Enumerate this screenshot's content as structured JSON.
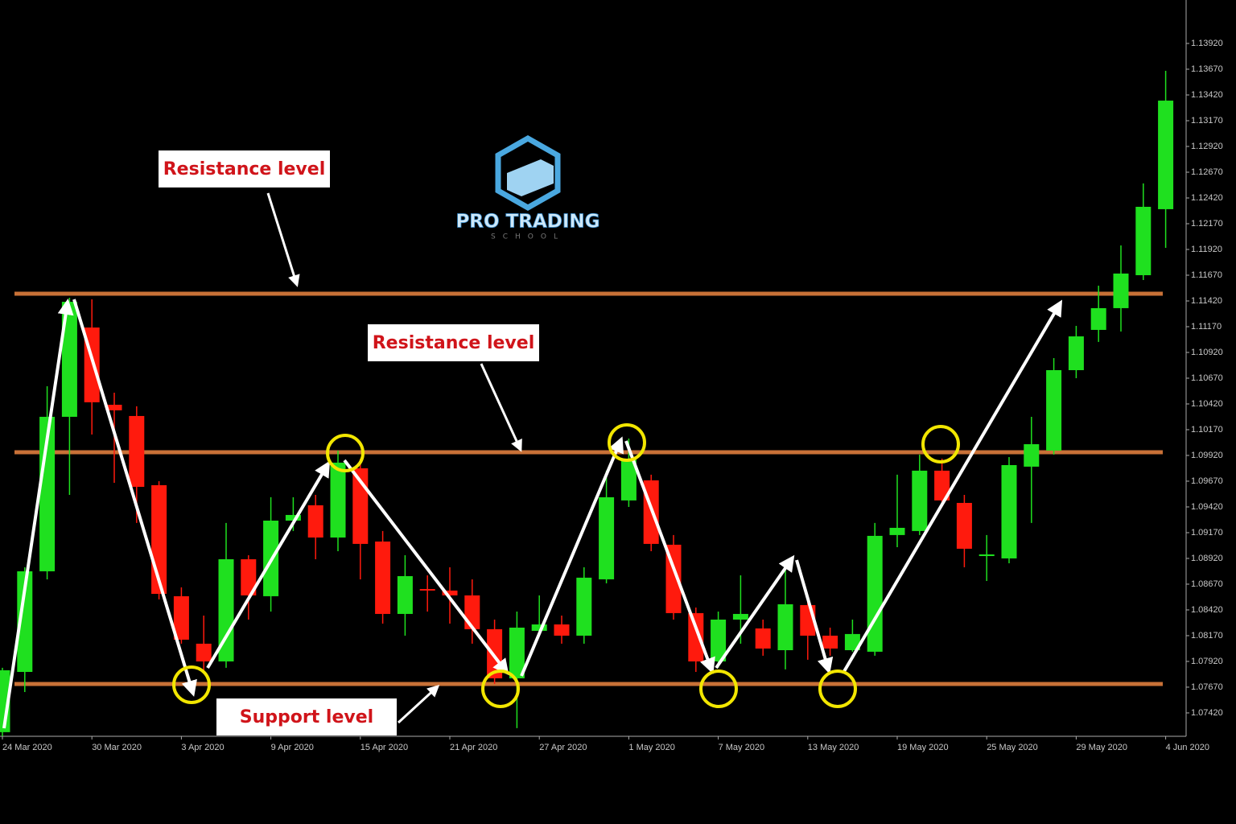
{
  "chart_data": {
    "type": "candlestick",
    "categories": [
      "24 Mar 2020",
      null,
      null,
      null,
      "30 Mar 2020",
      null,
      null,
      null,
      "3 Apr 2020",
      null,
      null,
      null,
      "9 Apr 2020",
      null,
      null,
      null,
      "15 Apr 2020",
      null,
      null,
      null,
      "21 Apr 2020",
      null,
      null,
      null,
      "27 Apr 2020",
      null,
      null,
      null,
      "1 May 2020",
      null,
      null,
      null,
      "7 May 2020",
      null,
      null,
      null,
      "13 May 2020",
      null,
      null,
      null,
      "19 May 2020",
      null,
      null,
      null,
      "25 May 2020",
      null,
      null,
      null,
      "29 May 2020",
      null,
      null,
      null,
      "4 Jun 2020"
    ],
    "open": [
      1.07233,
      1.07818,
      1.08795,
      1.10295,
      1.11162,
      1.10412,
      1.10303,
      1.09631,
      1.08553,
      1.08092,
      1.0792,
      1.08912,
      1.08553,
      1.09287,
      1.09436,
      1.09123,
      1.09795,
      1.09084,
      1.08381,
      1.08623,
      1.08608,
      1.08561,
      1.08233,
      1.07756,
      1.08217,
      1.08279,
      1.0817,
      1.08717,
      1.09483,
      1.09678,
      1.09053,
      1.08389,
      1.0792,
      1.08326,
      1.0824,
      1.08029,
      1.08467,
      1.0817,
      1.08029,
      1.08014,
      1.09147,
      1.09186,
      1.09772,
      1.09459,
      1.08943,
      1.0892,
      1.09811,
      1.09967,
      1.10748,
      1.11139,
      1.1135,
      1.1167,
      1.12311
    ],
    "high": [
      1.07858,
      1.08834,
      1.10592,
      1.11451,
      1.11436,
      1.10529,
      1.10397,
      1.0967,
      1.08639,
      1.08365,
      1.09264,
      1.08951,
      1.09514,
      1.09514,
      1.09537,
      1.09967,
      1.09889,
      1.09186,
      1.08951,
      1.08756,
      1.08834,
      1.08717,
      1.08326,
      1.08404,
      1.08561,
      1.08365,
      1.08834,
      1.09772,
      1.10084,
      1.09733,
      1.09147,
      1.08443,
      1.08404,
      1.08756,
      1.08326,
      1.08873,
      1.08561,
      1.08248,
      1.08326,
      1.09264,
      1.09733,
      1.09928,
      1.09889,
      1.09537,
      1.09147,
      1.09904,
      1.10295,
      1.10865,
      1.11178,
      1.11568,
      1.11959,
      1.12561,
      1.13654
    ],
    "low": [
      1.07193,
      1.07623,
      1.08717,
      1.09537,
      1.10123,
      1.09654,
      1.09264,
      1.08522,
      1.08092,
      1.07818,
      1.07858,
      1.08326,
      1.08404,
      1.09186,
      1.08912,
      1.0899,
      1.08717,
      1.08287,
      1.0817,
      1.08404,
      1.08287,
      1.08092,
      1.07701,
      1.07272,
      1.0817,
      1.08092,
      1.08092,
      1.08678,
      1.0942,
      1.0899,
      1.08326,
      1.07818,
      1.07858,
      1.08092,
      1.07975,
      1.07842,
      1.07936,
      1.07975,
      1.08014,
      1.07975,
      1.09029,
      1.09147,
      1.0942,
      1.08834,
      1.08701,
      1.08873,
      1.09264,
      1.09928,
      1.1067,
      1.11022,
      1.11123,
      1.11623,
      1.11936
    ],
    "close": [
      1.07834,
      1.08795,
      1.10295,
      1.11412,
      1.10436,
      1.10358,
      1.09615,
      1.08576,
      1.08131,
      1.0792,
      1.08912,
      1.08561,
      1.09287,
      1.09342,
      1.09123,
      1.0985,
      1.09061,
      1.08381,
      1.08748,
      1.08608,
      1.08561,
      1.08233,
      1.07756,
      1.08248,
      1.08279,
      1.0817,
      1.08733,
      1.09514,
      1.09889,
      1.09061,
      1.08389,
      1.0792,
      1.08326,
      1.08381,
      1.08045,
      1.08475,
      1.0817,
      1.08045,
      1.08186,
      1.09139,
      1.09217,
      1.09772,
      1.09483,
      1.09014,
      1.08959,
      1.09826,
      1.10029,
      1.10748,
      1.11076,
      1.1135,
      1.11686,
      1.12334,
      1.13365
    ],
    "up_color": "#1fe01f",
    "down_color": "#ff1a0d",
    "ylim": [
      1.07193,
      1.14342
    ],
    "yticks": [
      {
        "value": 1.0742,
        "label": "1.07420"
      },
      {
        "value": 1.0767,
        "label": "1.07670"
      },
      {
        "value": 1.0792,
        "label": "1.07920"
      },
      {
        "value": 1.0817,
        "label": "1.08170"
      },
      {
        "value": 1.0842,
        "label": "1.08420"
      },
      {
        "value": 1.0867,
        "label": "1.08670"
      },
      {
        "value": 1.0892,
        "label": "1.08920"
      },
      {
        "value": 1.0917,
        "label": "1.09170"
      },
      {
        "value": 1.0942,
        "label": "1.09420"
      },
      {
        "value": 1.0967,
        "label": "1.09670"
      },
      {
        "value": 1.0992,
        "label": "1.09920"
      },
      {
        "value": 1.1017,
        "label": "1.10170"
      },
      {
        "value": 1.1042,
        "label": "1.10420"
      },
      {
        "value": 1.1067,
        "label": "1.10670"
      },
      {
        "value": 1.1092,
        "label": "1.10920"
      },
      {
        "value": 1.1117,
        "label": "1.11170"
      },
      {
        "value": 1.1142,
        "label": "1.11420"
      },
      {
        "value": 1.1167,
        "label": "1.11670"
      },
      {
        "value": 1.1192,
        "label": "1.11920"
      },
      {
        "value": 1.1217,
        "label": "1.12170"
      },
      {
        "value": 1.1242,
        "label": "1.12420"
      },
      {
        "value": 1.1267,
        "label": "1.12670"
      },
      {
        "value": 1.1292,
        "label": "1.12920"
      },
      {
        "value": 1.1317,
        "label": "1.13170"
      },
      {
        "value": 1.1342,
        "label": "1.13420"
      },
      {
        "value": 1.1367,
        "label": "1.13670"
      },
      {
        "value": 1.1392,
        "label": "1.13920"
      }
    ],
    "levels": [
      {
        "label": "Resistance level",
        "value": 1.1149
      },
      {
        "label": "Resistance level",
        "value": 1.09951
      },
      {
        "label": "Support level",
        "value": 1.07701
      }
    ],
    "level_color": "#c87137"
  },
  "logo": {
    "title": "PRO TRADING",
    "subtitle": "SCHOOL"
  }
}
